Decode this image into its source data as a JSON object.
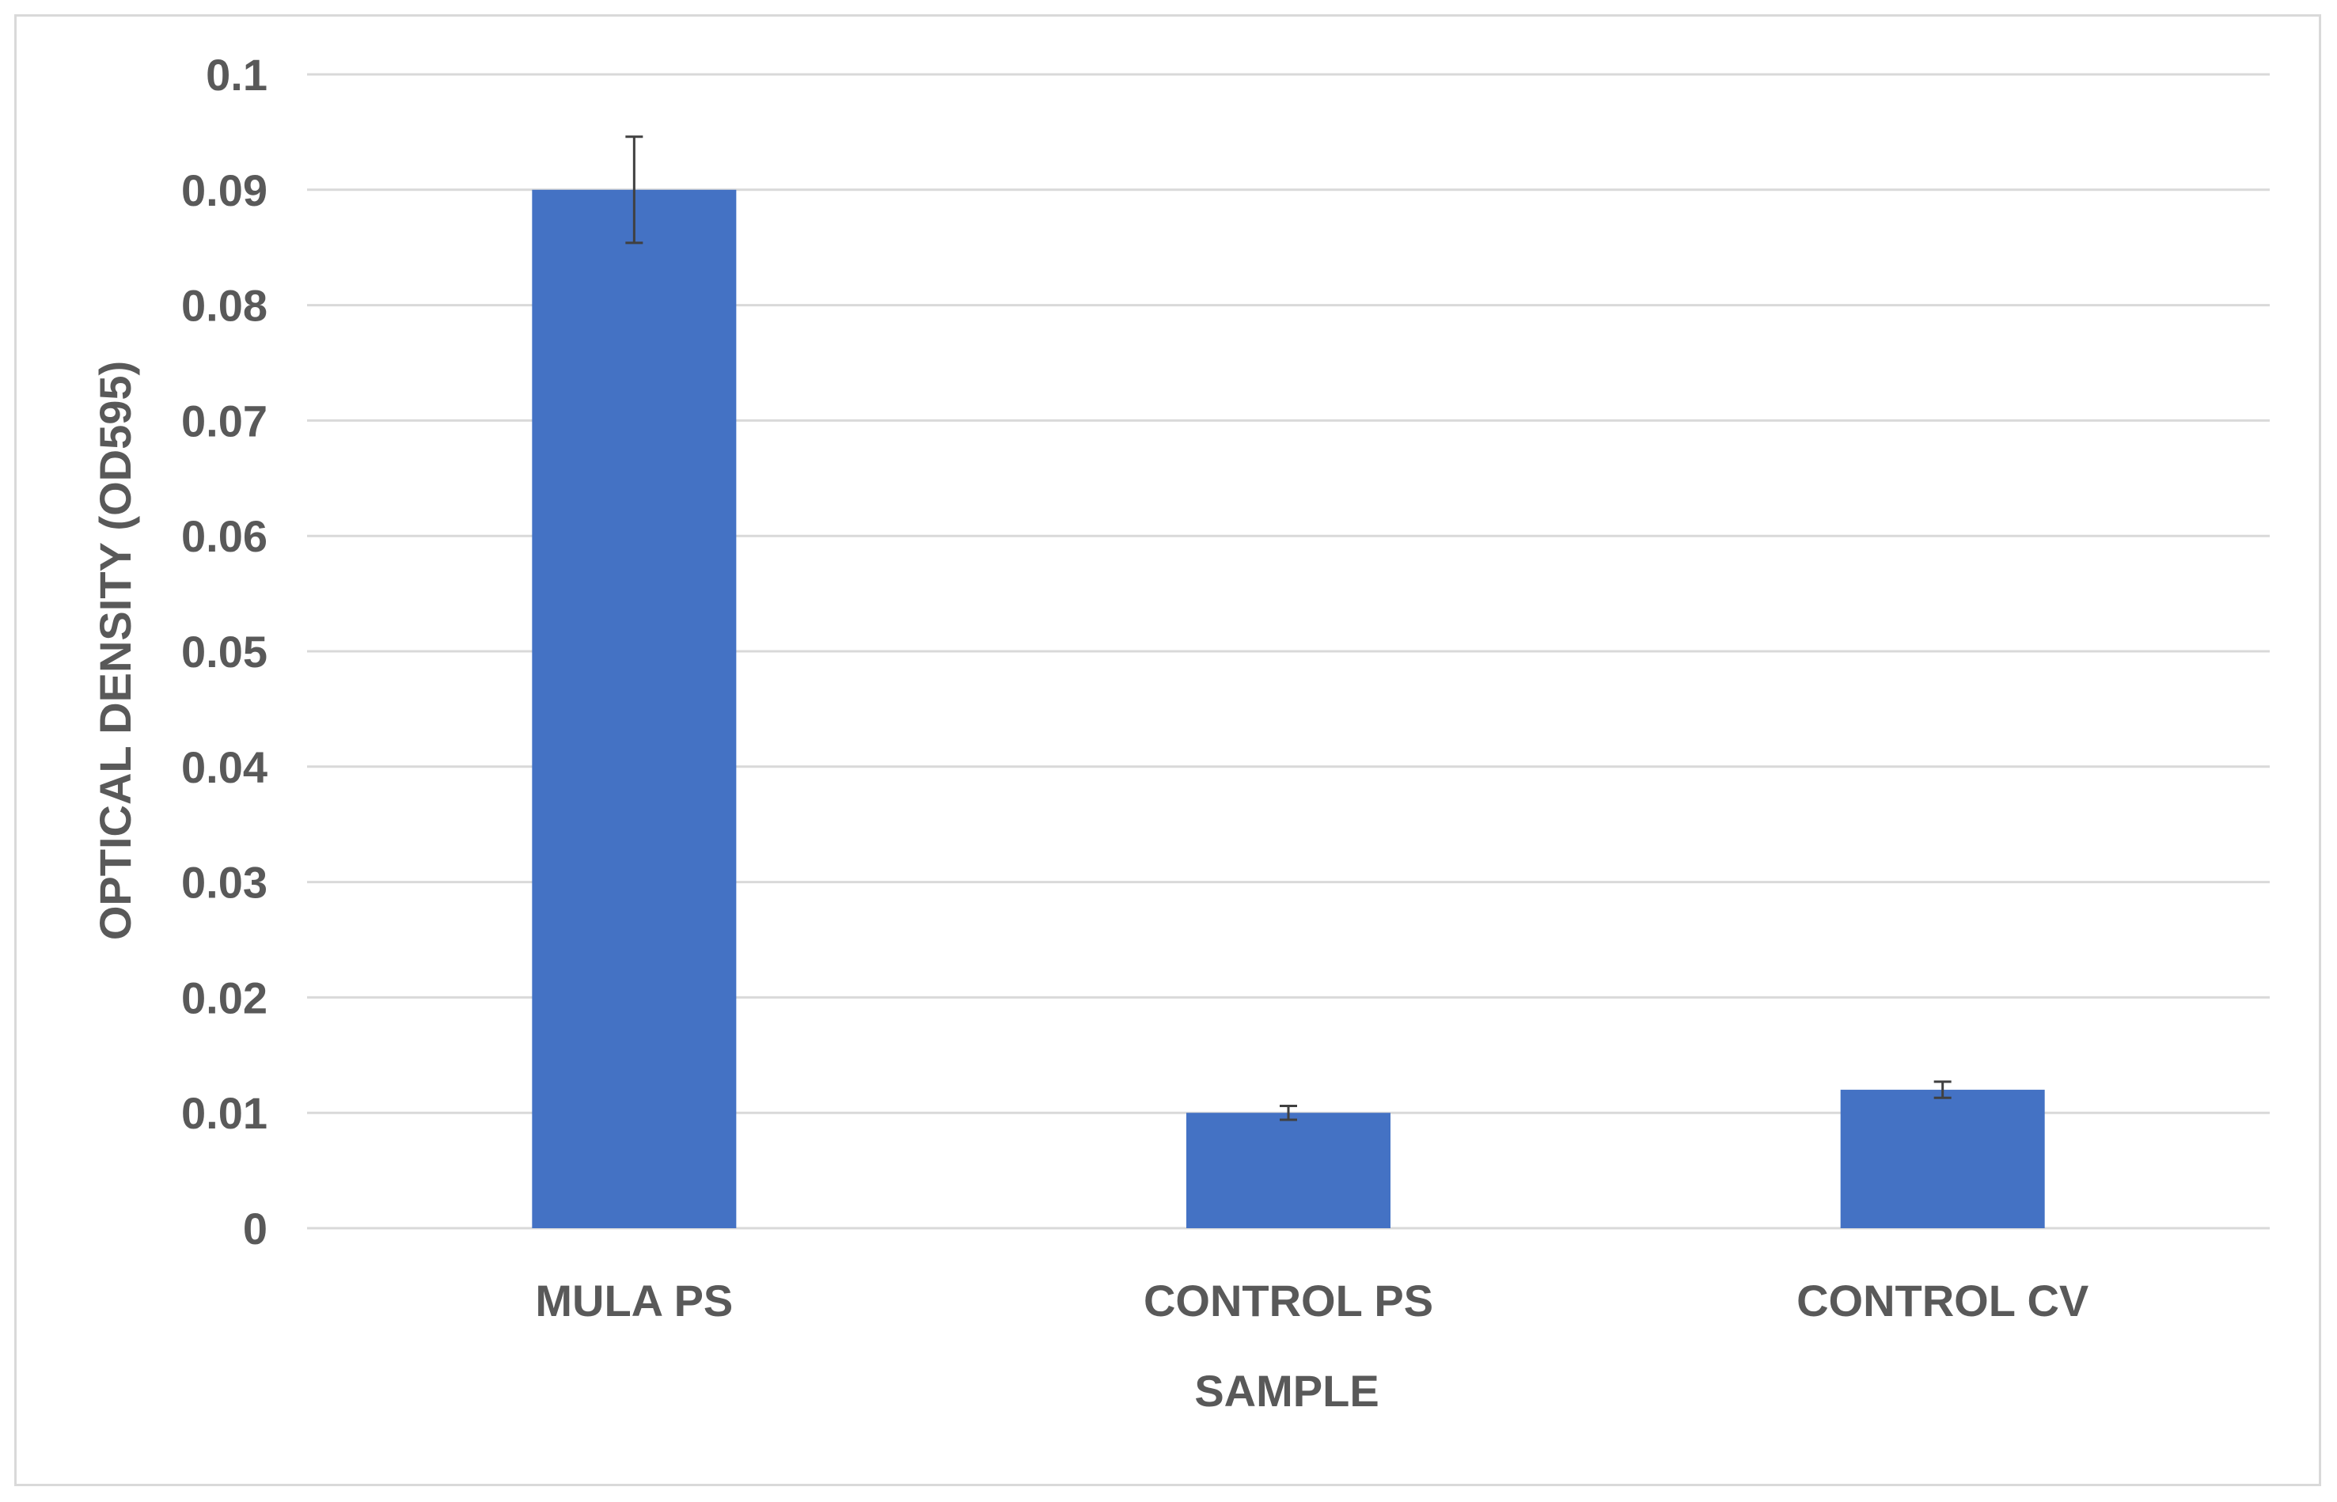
{
  "chart_data": {
    "type": "bar",
    "categories": [
      "MULA PS",
      "CONTROL PS",
      "CONTROL CV"
    ],
    "series": [
      {
        "values": [
          0.09,
          0.01,
          0.012
        ],
        "error": [
          0.0046,
          0.0006,
          0.0007
        ],
        "color": "#4472c4"
      }
    ],
    "xlabel": "SAMPLE",
    "ylabel": "OPTICAL DENSITY (OD595)",
    "ylim": [
      0,
      0.1
    ],
    "yticks": [
      0,
      0.01,
      0.02,
      0.03,
      0.04,
      0.05,
      0.06,
      0.07,
      0.08,
      0.09,
      0.1
    ],
    "ytick_labels": [
      "0",
      "0.01",
      "0.02",
      "0.03",
      "0.04",
      "0.05",
      "0.06",
      "0.07",
      "0.08",
      "0.09",
      "0.1"
    ],
    "grid": true,
    "legend": "none",
    "colors": {
      "bar": "#4472c4",
      "grid": "#d9d9d9",
      "text": "#595959",
      "error_bar": "#404040"
    }
  }
}
